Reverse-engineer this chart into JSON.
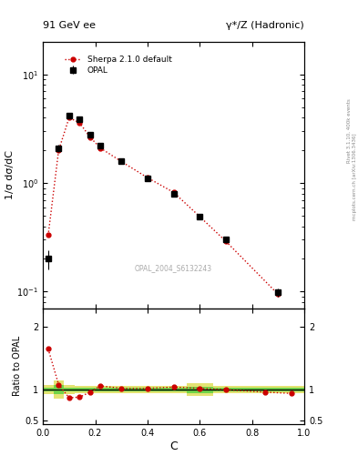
{
  "title_left": "91 GeV ee",
  "title_right": "γ*/Z (Hadronic)",
  "ylabel_main": "1/σ dσ/dC",
  "ylabel_ratio": "Ratio to OPAL",
  "xlabel": "C",
  "watermark": "OPAL_2004_S6132243",
  "right_label_top": "Rivet 3.1.10, 400k events",
  "right_label_bot": "mcplots.cern.ch [arXiv:1306.3436]",
  "opal_x": [
    0.02,
    0.06,
    0.1,
    0.14,
    0.18,
    0.22,
    0.3,
    0.4,
    0.5,
    0.6,
    0.7,
    0.9
  ],
  "opal_y": [
    0.2,
    2.1,
    4.2,
    3.9,
    2.8,
    2.2,
    1.6,
    1.1,
    0.8,
    0.49,
    0.3,
    0.098
  ],
  "opal_yerr": [
    0.04,
    0.15,
    0.12,
    0.12,
    0.1,
    0.08,
    0.07,
    0.05,
    0.04,
    0.03,
    0.02,
    0.008
  ],
  "sherpa_x": [
    0.02,
    0.06,
    0.1,
    0.14,
    0.18,
    0.22,
    0.3,
    0.4,
    0.5,
    0.6,
    0.7,
    0.9
  ],
  "sherpa_y": [
    0.33,
    2.0,
    4.0,
    3.6,
    2.65,
    2.1,
    1.58,
    1.12,
    0.82,
    0.49,
    0.29,
    0.094
  ],
  "bin_edges": [
    0.0,
    0.04,
    0.08,
    0.12,
    0.16,
    0.2,
    0.24,
    0.35,
    0.45,
    0.55,
    0.65,
    0.78,
    1.0
  ],
  "ratio_sherpa_y": [
    1.65,
    1.08,
    0.87,
    0.88,
    0.96,
    1.06,
    1.02,
    1.02,
    1.04,
    1.02,
    1.0,
    0.96,
    0.94
  ],
  "ratio_sherpa_x": [
    0.02,
    0.06,
    0.1,
    0.14,
    0.18,
    0.22,
    0.3,
    0.4,
    0.5,
    0.6,
    0.7,
    0.85,
    0.95
  ],
  "green_half": [
    0.03,
    0.07,
    0.03,
    0.03,
    0.03,
    0.03,
    0.03,
    0.03,
    0.03,
    0.05,
    0.03,
    0.03
  ],
  "yellow_half": [
    0.07,
    0.14,
    0.07,
    0.06,
    0.06,
    0.06,
    0.06,
    0.06,
    0.06,
    0.1,
    0.06,
    0.06
  ],
  "opal_color": "#000000",
  "sherpa_color": "#cc0000",
  "green_band": "#33cc33",
  "yellow_band": "#cccc00",
  "ylim_main": [
    0.07,
    20
  ],
  "ylim_ratio": [
    0.45,
    2.3
  ],
  "xlim": [
    0.0,
    1.0
  ]
}
